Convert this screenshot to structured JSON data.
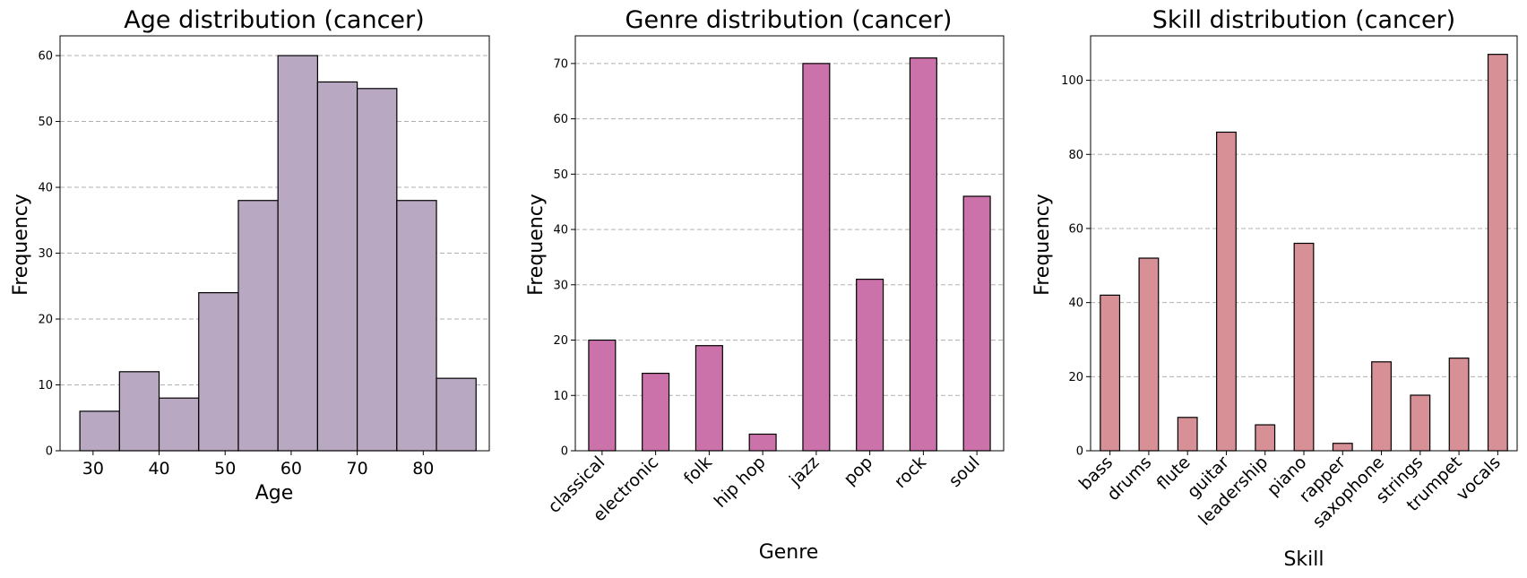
{
  "chart_data": [
    {
      "type": "bar",
      "subtype": "histogram",
      "title": "Age distribution (cancer)",
      "xlabel": "Age",
      "ylabel": "Frequency",
      "color": "#b9a8c1",
      "bins": [
        [
          28,
          34
        ],
        [
          34,
          40
        ],
        [
          40,
          46
        ],
        [
          46,
          52
        ],
        [
          52,
          58
        ],
        [
          58,
          64
        ],
        [
          64,
          70
        ],
        [
          70,
          76
        ],
        [
          76,
          82
        ],
        [
          82,
          88
        ]
      ],
      "values": [
        6,
        12,
        8,
        24,
        38,
        60,
        56,
        55,
        38,
        11
      ],
      "xlim": [
        25,
        90
      ],
      "ylim": [
        0,
        63
      ],
      "xticks": [
        30,
        40,
        50,
        60,
        70,
        80
      ],
      "yticks": [
        0,
        10,
        20,
        30,
        40,
        50,
        60
      ],
      "grid": "y"
    },
    {
      "type": "bar",
      "title": "Genre distribution (cancer)",
      "xlabel": "Genre",
      "ylabel": "Frequency",
      "color": "#cc72aa",
      "categories": [
        "classical",
        "electronic",
        "folk",
        "hip hop",
        "jazz",
        "pop",
        "rock",
        "soul"
      ],
      "values": [
        20,
        14,
        19,
        3,
        70,
        31,
        71,
        46
      ],
      "ylim": [
        0,
        75
      ],
      "yticks": [
        0,
        10,
        20,
        30,
        40,
        50,
        60,
        70
      ],
      "grid": "y"
    },
    {
      "type": "bar",
      "title": "Skill distribution (cancer)",
      "xlabel": "Skill",
      "ylabel": "Frequency",
      "color": "#d69096",
      "categories": [
        "bass",
        "drums",
        "flute",
        "guitar",
        "leadership",
        "piano",
        "rapper",
        "saxophone",
        "strings",
        "trumpet",
        "vocals"
      ],
      "values": [
        42,
        52,
        9,
        86,
        7,
        56,
        2,
        24,
        15,
        25,
        107
      ],
      "ylim": [
        0,
        112
      ],
      "yticks": [
        0,
        20,
        40,
        60,
        80,
        100
      ],
      "grid": "y"
    }
  ]
}
